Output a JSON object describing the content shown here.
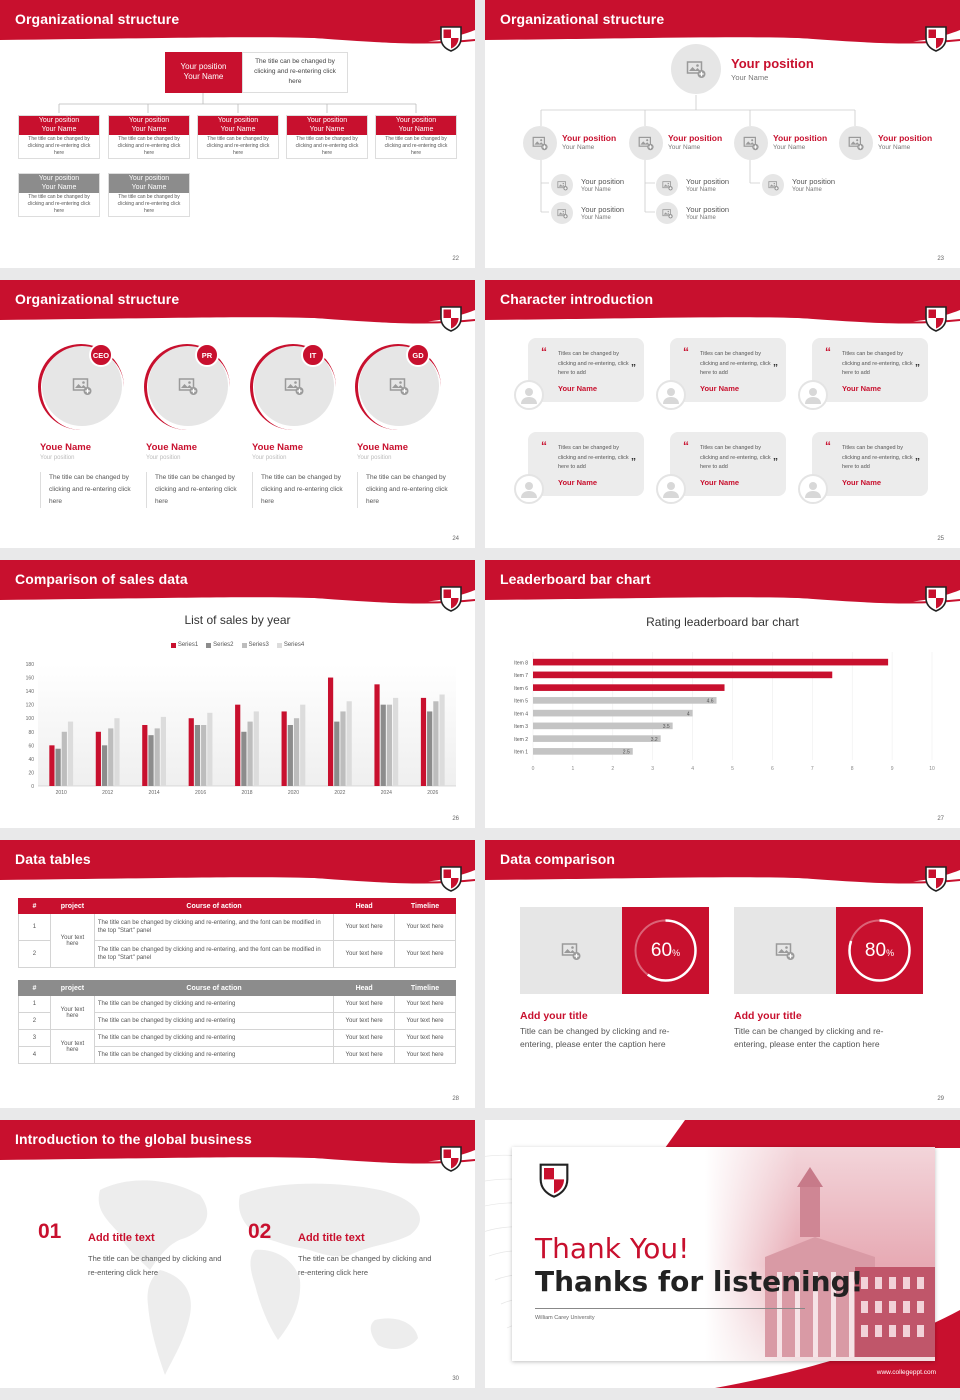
{
  "colors": {
    "brand": "#c8102e",
    "gray": "#8c8c8c",
    "light": "#e6e6e6"
  },
  "slides": [
    {
      "title": "Organizational structure",
      "page": "22",
      "top_box": {
        "title": "Your position",
        "name": "Your Name",
        "note": "The title can be changed by clicking and re-entering click here"
      },
      "nodes": [
        {
          "title": "Your position",
          "name": "Your Name",
          "desc": "The title can be changed by clicking and re-entering click here"
        },
        {
          "title": "Your position",
          "name": "Your Name",
          "desc": "The title can be changed by clicking and re-entering click here"
        },
        {
          "title": "Your position",
          "name": "Your Name",
          "desc": "The title can be changed by clicking and re-entering click here"
        },
        {
          "title": "Your position",
          "name": "Your Name",
          "desc": "The title can be changed by clicking and re-entering click here"
        },
        {
          "title": "Your position",
          "name": "Your Name",
          "desc": "The title can be changed by clicking and re-entering click here"
        },
        {
          "title": "Your position",
          "name": "Your Name",
          "desc": "The title can be changed by clicking and re-entering click here"
        },
        {
          "title": "Your position",
          "name": "Your Name",
          "desc": "The title can be changed by clicking and re-entering click here"
        }
      ]
    },
    {
      "title": "Organizational structure",
      "page": "23",
      "top": {
        "title": "Your position",
        "name": "Your Name"
      },
      "row": [
        {
          "title": "Your position",
          "name": "Your Name"
        },
        {
          "title": "Your position",
          "name": "Your Name"
        },
        {
          "title": "Your position",
          "name": "Your Name"
        },
        {
          "title": "Your position",
          "name": "Your Name"
        }
      ],
      "subs": [
        {
          "title": "Your position",
          "name": "Your Name"
        },
        {
          "title": "Your position",
          "name": "Your Name"
        },
        {
          "title": "Your position",
          "name": "Your Name"
        },
        {
          "title": "Your position",
          "name": "Your Name"
        },
        {
          "title": "Your position",
          "name": "Your Name"
        }
      ]
    },
    {
      "title": "Organizational structure",
      "page": "24",
      "people": [
        {
          "badge": "CEO",
          "name": "Youe Name",
          "pos": "Your position",
          "desc": "The title can be changed by clicking and re-entering click here"
        },
        {
          "badge": "PR",
          "name": "Youe Name",
          "pos": "Your position",
          "desc": "The title can be changed by clicking and re-entering click here"
        },
        {
          "badge": "IT",
          "name": "Youe Name",
          "pos": "Your position",
          "desc": "The title can be changed by clicking and re-entering click here"
        },
        {
          "badge": "GD",
          "name": "Youe Name",
          "pos": "Your position",
          "desc": "The title can be changed by clicking and re-entering click here"
        }
      ]
    },
    {
      "title": "Character introduction",
      "page": "25",
      "quotes": [
        {
          "text": "Titles can be changed by clicking and re-entering, click here to add",
          "name": "Your Name"
        },
        {
          "text": "Titles can be changed by clicking and re-entering, click here to add",
          "name": "Your Name"
        },
        {
          "text": "Titles can be changed by clicking and re-entering, click here to add",
          "name": "Your Name"
        },
        {
          "text": "Titles can be changed by clicking and re-entering, click here to add",
          "name": "Your Name"
        },
        {
          "text": "Titles can be changed by clicking and re-entering, click here to add",
          "name": "Your Name"
        },
        {
          "text": "Titles can be changed by clicking and re-entering, click here to add",
          "name": "Your Name"
        }
      ]
    },
    {
      "title": "Comparison of sales data",
      "page": "26",
      "chart_title": "List of sales by year"
    },
    {
      "title": "Leaderboard bar chart",
      "page": "27",
      "chart_title": "Rating leaderboard bar chart"
    },
    {
      "title": "Data tables",
      "page": "28",
      "t1": {
        "headers": [
          "#",
          "project",
          "Course of action",
          "Head",
          "Timeline"
        ],
        "group": "Your text here",
        "rows": [
          {
            "n": "1",
            "action": "The title can be changed by clicking and re-entering, and the font can be modified in the top \"Start\" panel",
            "head": "Your text here",
            "time": "Your text here"
          },
          {
            "n": "2",
            "action": "The title can be changed by clicking and re-entering, and the font can be modified in the top \"Start\" panel",
            "head": "Your text here",
            "time": "Your text here"
          }
        ]
      },
      "t2": {
        "headers": [
          "#",
          "project",
          "Course of action",
          "Head",
          "Timeline"
        ],
        "groups": [
          "Your text here",
          "Your text here"
        ],
        "rows": [
          {
            "n": "1",
            "action": "The title can be changed by clicking and re-entering",
            "head": "Your text here",
            "time": "Your text here"
          },
          {
            "n": "2",
            "action": "The title can be changed by clicking and re-entering",
            "head": "Your text here",
            "time": "Your text here"
          },
          {
            "n": "3",
            "action": "The title can be changed by clicking and re-entering",
            "head": "Your text here",
            "time": "Your text here"
          },
          {
            "n": "4",
            "action": "The title can be changed by clicking and re-entering",
            "head": "Your text here",
            "time": "Your text here"
          }
        ]
      }
    },
    {
      "title": "Data comparison",
      "page": "29",
      "cards": [
        {
          "value": "60",
          "unit": "%",
          "pct": 0.6,
          "title": "Add your title",
          "text": "Title can be changed by clicking and re-entering, please enter the caption here"
        },
        {
          "value": "80",
          "unit": "%",
          "pct": 0.8,
          "title": "Add your title",
          "text": "Title can be changed by clicking and re-entering, please enter the caption here"
        }
      ]
    },
    {
      "title": "Introduction to the global business",
      "page": "30",
      "items": [
        {
          "num": "01",
          "title": "Add title text",
          "text": "The title can be changed by clicking and re-entering click here"
        },
        {
          "num": "02",
          "title": "Add title text",
          "text": "The title can be changed by clicking and re-entering click here"
        }
      ]
    },
    {
      "thanks1": "Thank You!",
      "thanks2": "Thanks for listening!",
      "uni": "William Carey University",
      "site": "www.collegeppt.com"
    }
  ],
  "chart_data": [
    {
      "type": "bar",
      "title": "List of sales by year",
      "categories": [
        "2010",
        "2012",
        "2014",
        "2016",
        "2018",
        "2020",
        "2022",
        "2024",
        "2026"
      ],
      "series": [
        {
          "name": "Series1",
          "color": "#c8102e",
          "values": [
            60,
            80,
            90,
            100,
            120,
            110,
            160,
            150,
            130
          ]
        },
        {
          "name": "Series2",
          "color": "#8c8c8c",
          "values": [
            55,
            60,
            75,
            90,
            80,
            90,
            95,
            120,
            110
          ]
        },
        {
          "name": "Series3",
          "color": "#bdbdbd",
          "values": [
            80,
            85,
            85,
            90,
            95,
            100,
            110,
            120,
            125
          ]
        },
        {
          "name": "Series4",
          "color": "#dcdcdc",
          "values": [
            95,
            100,
            102,
            108,
            110,
            120,
            125,
            130,
            135
          ]
        }
      ],
      "yticks": [
        "0",
        "20",
        "40",
        "60",
        "80",
        "100",
        "120",
        "140",
        "160",
        "180"
      ],
      "ylim": [
        0,
        180
      ],
      "legend": "top"
    },
    {
      "type": "bar",
      "orientation": "horizontal",
      "title": "Rating leaderboard bar chart",
      "categories": [
        "Item 1",
        "Item 2",
        "Item 3",
        "Item 4",
        "Item 5",
        "Item 6",
        "Item 7",
        "Item 8"
      ],
      "values": [
        2.5,
        3.2,
        3.5,
        4,
        4.6,
        4.8,
        7.5,
        8.9
      ],
      "labels": [
        "2.5",
        "3.2",
        "3.5",
        "4",
        "4.6",
        "",
        "",
        ""
      ],
      "xticks": [
        "0",
        "1",
        "2",
        "3",
        "4",
        "5",
        "6",
        "7",
        "8",
        "9",
        "10"
      ],
      "xlim": [
        0,
        10
      ]
    }
  ]
}
